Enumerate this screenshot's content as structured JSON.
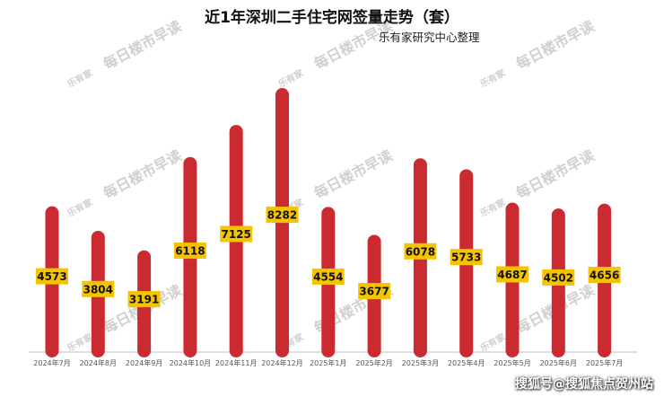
{
  "watermark": {
    "logo": "乐有家",
    "text": "每日楼市早读"
  },
  "credit": "搜狐号@搜狐焦点贺州站",
  "colors": {
    "bar": "#cc2a31",
    "label_bg": "#f5c400",
    "axis": "#bfbfbf"
  },
  "chart_data": {
    "type": "bar",
    "title": "近1年深圳二手住宅网签量走势（套）",
    "subtitle": "乐有家研究中心整理",
    "categories": [
      "2024年7月",
      "2024年8月",
      "2024年9月",
      "2024年10月",
      "2024年11月",
      "2024年12月",
      "2025年1月",
      "2025年2月",
      "2025年3月",
      "2025年4月",
      "2025年5月",
      "2025年6月",
      "2025年7月"
    ],
    "values": [
      4573,
      3804,
      3191,
      6118,
      7125,
      8282,
      4554,
      3677,
      6078,
      5733,
      4687,
      4502,
      4656
    ],
    "ylim": [
      0,
      8282
    ],
    "grid": false,
    "legend": "none"
  }
}
